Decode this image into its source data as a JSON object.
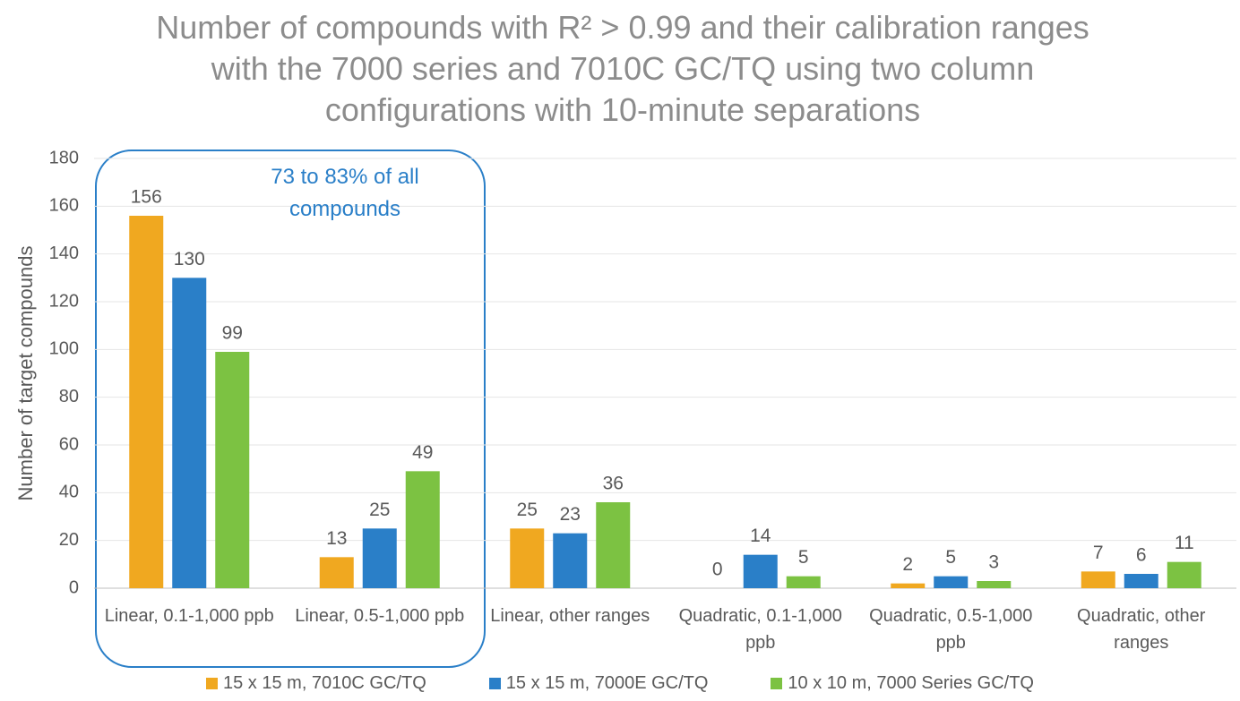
{
  "chart_data": {
    "type": "bar",
    "title": "Number of compounds with R² > 0.99 and their calibration ranges with the 7000 series and 7010C GC/TQ using two column configurations with 10-minute separations",
    "y_label": "Number of target compounds",
    "annotation": "73 to 83% of all compounds",
    "categories": [
      "Linear, 0.1-1,000 ppb",
      "Linear, 0.5-1,000 ppb",
      "Linear, other ranges",
      "Quadratic, 0.1-1,000 ppb",
      "Quadratic, 0.5-1,000 ppb",
      "Quadratic, other ranges"
    ],
    "series": [
      {
        "name": "15 x 15 m, 7010C GC/TQ",
        "color": "#f0a820",
        "values": [
          156,
          13,
          25,
          0,
          2,
          7
        ]
      },
      {
        "name": "15 x 15 m, 7000E GC/TQ",
        "color": "#2a7fc8",
        "values": [
          130,
          25,
          23,
          14,
          5,
          6
        ]
      },
      {
        "name": "10 x 10 m, 7000 Series GC/TQ",
        "color": "#7cc242",
        "values": [
          99,
          49,
          36,
          5,
          3,
          11
        ]
      }
    ],
    "ylim": [
      0,
      180
    ],
    "yticks": [
      0,
      20,
      40,
      60,
      80,
      100,
      120,
      140,
      160,
      180
    ],
    "grid": true
  }
}
